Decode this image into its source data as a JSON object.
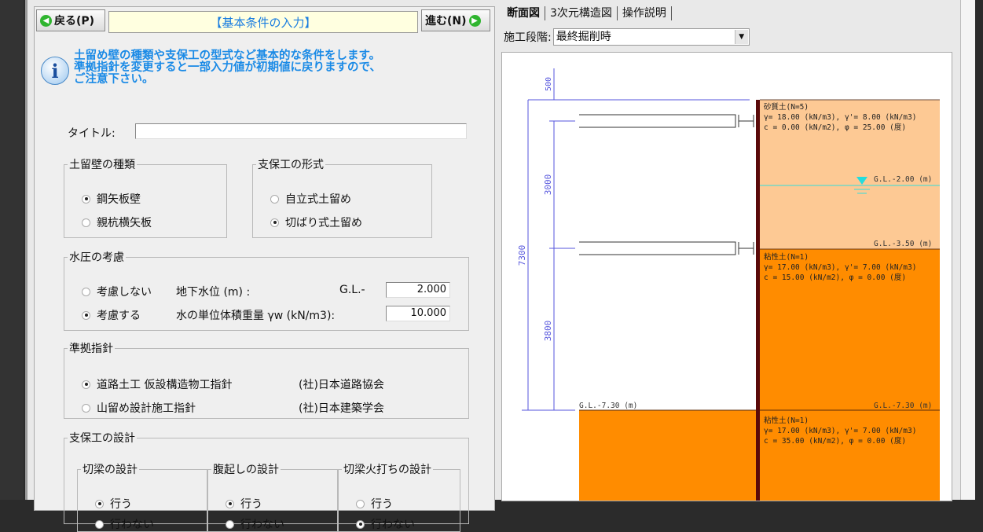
{
  "nav": {
    "back_label": "戻る(P)",
    "next_label": "進む(N)",
    "page_title": "【基本条件の入力】"
  },
  "info": {
    "lines": [
      "土留め壁の種類や支保工の型式など基本的な条件をします。",
      "準拠指針を変更すると一部入力値が初期値に戻りますので、",
      "ご注意下さい。"
    ]
  },
  "title_field": {
    "label": "タイトル:",
    "value": ""
  },
  "wall_type": {
    "legend": "土留壁の種類",
    "options": [
      {
        "label": "鋼矢板壁",
        "selected": true
      },
      {
        "label": "親杭横矢板",
        "selected": false
      }
    ]
  },
  "support_type": {
    "legend": "支保工の形式",
    "options": [
      {
        "label": "自立式土留め",
        "selected": false
      },
      {
        "label": "切ばり式土留め",
        "selected": true
      }
    ]
  },
  "water": {
    "legend": "水圧の考慮",
    "options": [
      {
        "label": "考慮しない",
        "selected": false
      },
      {
        "label": "考慮する",
        "selected": true
      }
    ],
    "gwl_label": "地下水位 (m) :",
    "gl_prefix": "G.L.-",
    "gwl_value": "2.000",
    "unit_weight_label": "水の単位体積重量 γw (kN/m3):",
    "unit_weight_value": "10.000"
  },
  "standard": {
    "legend": "準拠指針",
    "options": [
      {
        "label": "道路土工 仮設構造物工指針",
        "org": "(社)日本道路協会",
        "selected": true
      },
      {
        "label": "山留め設計施工指針",
        "org": "(社)日本建築学会",
        "selected": false
      }
    ]
  },
  "support_design": {
    "legend": "支保工の設計",
    "groups": [
      {
        "legend": "切梁の設計",
        "options": [
          {
            "label": "行う",
            "selected": true
          },
          {
            "label": "行わない",
            "selected": false
          }
        ]
      },
      {
        "legend": "腹起しの設計",
        "options": [
          {
            "label": "行う",
            "selected": true
          },
          {
            "label": "行わない",
            "selected": false
          }
        ]
      },
      {
        "legend": "切梁火打ちの設計",
        "options": [
          {
            "label": "行う",
            "selected": false
          },
          {
            "label": "行わない",
            "selected": true
          }
        ]
      }
    ]
  },
  "right": {
    "tabs": [
      {
        "label": "断面図",
        "active": true
      },
      {
        "label": "3次元構造図",
        "active": false
      },
      {
        "label": "操作説明",
        "active": false
      }
    ],
    "stage_label": "施工段階:",
    "stage_value": "最終掘削時",
    "drawing": {
      "dims": {
        "top": "500",
        "total": "7300",
        "upper": "3000",
        "lower": "3800"
      },
      "excavation_label": "G.L.-7.30 (m)",
      "water_label": "G.L.-2.00 (m)",
      "layers": [
        {
          "name": "砂質土(N=5)",
          "line1": "γ=  18.00 (kN/m3), γ'=  8.00 (kN/m3)",
          "line2": "c =   0.00 (kN/m2), φ = 25.00 (度)",
          "bottom_label": "G.L.-3.50 (m)",
          "color": "#fdc994"
        },
        {
          "name": "粘性土(N=1)",
          "line1": "γ=  17.00 (kN/m3), γ'=  7.00 (kN/m3)",
          "line2": "c =  15.00 (kN/m2), φ =  0.00 (度)",
          "bottom_label": "G.L.-7.30 (m)",
          "color": "#ff8c00"
        },
        {
          "name": "粘性土(N=1)",
          "line1": "γ=  17.00 (kN/m3), γ'=  7.00 (kN/m3)",
          "line2": "c =  35.00 (kN/m2), φ =  0.00 (度)",
          "color": "#ff8c00"
        }
      ],
      "colors": {
        "dimension": "#5555dd",
        "wall": "#5a0a0a",
        "water": "#33dddd"
      }
    }
  }
}
